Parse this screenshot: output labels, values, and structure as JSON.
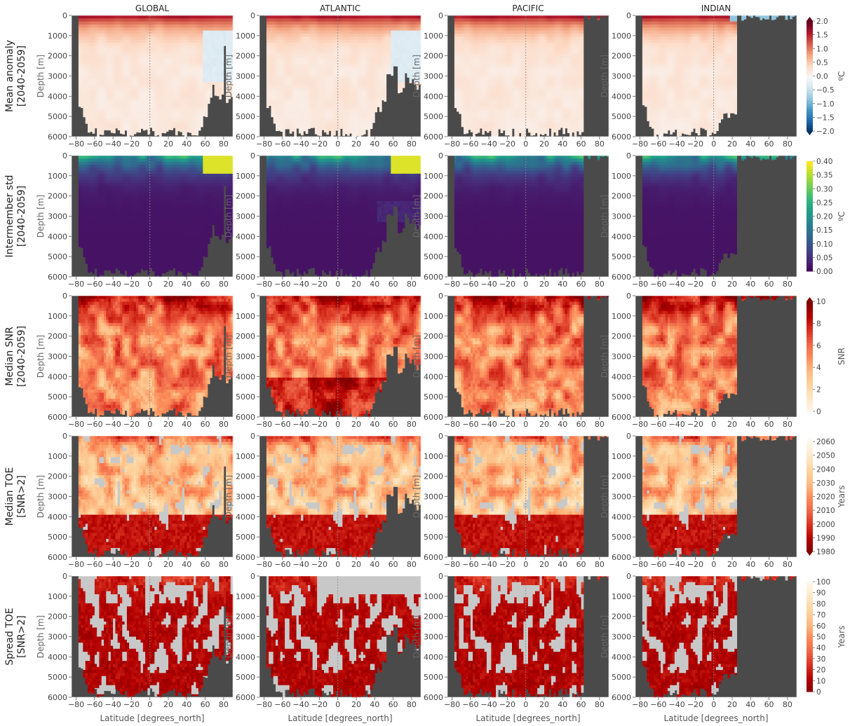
{
  "column_titles": [
    "GLOBAL",
    "ATLANTIC",
    "PACIFIC",
    "INDIAN"
  ],
  "row_labels": [
    [
      "Mean anomaly",
      "[2040-2059]"
    ],
    [
      "Intermember std",
      "[2040-2059]"
    ],
    [
      "Median SNR",
      "[2040-2059]"
    ],
    [
      "Median TOE",
      "[SNR>2]"
    ],
    [
      "Spread TOE",
      "[SNR>2]"
    ]
  ],
  "axis": {
    "ylabel": "Depth [m]",
    "xlabel": "Latitude [degrees_north]",
    "xticks": [
      "−80",
      "−60",
      "−40",
      "−20",
      "0",
      "20",
      "40",
      "60",
      "80"
    ],
    "yticks": [
      "0",
      "1000",
      "2000",
      "3000",
      "4000",
      "5000",
      "6000"
    ]
  },
  "colors": {
    "land": "#4a4a4a",
    "nosignal_gray": "#c8c8c8",
    "text": "#444444"
  },
  "colorbars": [
    {
      "label": "ºC",
      "ticks": [
        "2.0",
        "1.5",
        "1.0",
        "0.5",
        "0.0",
        "−0.5",
        "−1.0",
        "−1.5",
        "−2.0"
      ],
      "colormap": "RdBu_r",
      "range": [
        -2,
        2
      ]
    },
    {
      "label": "ºC",
      "ticks": [
        "0.40",
        "0.35",
        "0.30",
        "0.25",
        "0.20",
        "0.15",
        "0.10",
        "0.05",
        "0.00"
      ],
      "colormap": "viridis",
      "range": [
        0,
        0.4
      ]
    },
    {
      "label": "SNR",
      "ticks": [
        "10",
        "8",
        "6",
        "4",
        "2",
        "0"
      ],
      "colormap": "OrRd",
      "range": [
        0,
        10
      ]
    },
    {
      "label": "Years",
      "ticks": [
        "2060",
        "2050",
        "2040",
        "2030",
        "2020",
        "2010",
        "2000",
        "1990",
        "1980"
      ],
      "colormap": "OrRd_r",
      "range": [
        1980,
        2060
      ]
    },
    {
      "label": "Years",
      "ticks": [
        "100",
        "90",
        "80",
        "70",
        "60",
        "50",
        "40",
        "30",
        "20",
        "10",
        "0"
      ],
      "colormap": "OrRd_r",
      "range": [
        0,
        100
      ]
    }
  ],
  "chart_data": {
    "type": "heatmap",
    "description_rows": [
      "Mean anomaly [2040-2059]",
      "Intermember std [2040-2059]",
      "Median SNR [2040-2059]",
      "Median TOE [SNR>2]",
      "Spread TOE [SNR>2]"
    ],
    "x": {
      "label": "Latitude [degrees_north]",
      "range": [
        -85,
        90
      ]
    },
    "y": {
      "label": "Depth [m]",
      "range": [
        0,
        6000
      ],
      "inverted": true
    },
    "basin_latitude_extent": {
      "GLOBAL": [
        -80,
        90
      ],
      "ATLANTIC": [
        -80,
        90
      ],
      "PACIFIC": [
        -80,
        65
      ],
      "INDIAN": [
        -80,
        25
      ]
    }
  }
}
